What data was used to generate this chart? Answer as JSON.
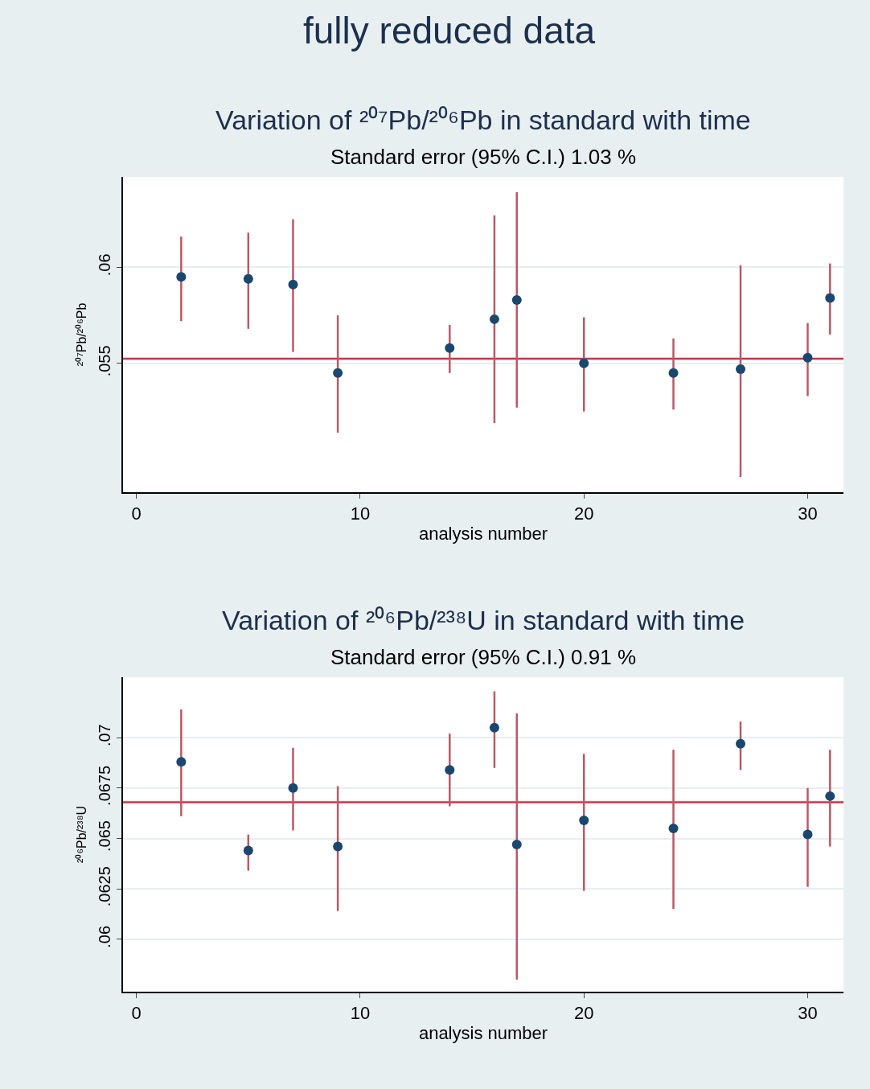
{
  "chart_data": [
    {
      "type": "scatter",
      "annotations": [
        "fully reduced data"
      ],
      "title": "Variation of ²⁰⁷Pb/²⁰⁶Pb in standard with time",
      "subtitle": "Standard error (95% C.I.) 1.03 %",
      "xlabel": "analysis number",
      "ylabel": "²⁰⁷Pb/²⁰⁶Pb",
      "x": [
        2,
        5,
        7,
        9,
        14,
        16,
        17,
        20,
        24,
        27,
        30,
        31
      ],
      "series": [
        {
          "color": "#1a476f",
          "values": [
            0.0595,
            0.0594,
            0.0591,
            0.0545,
            0.0558,
            0.0573,
            0.0583,
            0.055,
            0.0545,
            0.0547,
            0.0553,
            0.0584
          ],
          "errors": [
            [
              0.0572,
              0.0616
            ],
            [
              0.0568,
              0.0618
            ],
            [
              0.0556,
              0.0625
            ],
            [
              0.0514,
              0.0575
            ],
            [
              0.0545,
              0.057
            ],
            [
              0.0519,
              0.0627
            ],
            [
              0.0527,
              0.0639
            ],
            [
              0.0525,
              0.0574
            ],
            [
              0.0526,
              0.0563
            ],
            [
              0.0491,
              0.0601
            ],
            [
              0.0533,
              0.0571
            ],
            [
              0.0565,
              0.0602
            ]
          ]
        }
      ],
      "marker": "circle",
      "xlim": [
        -0.6,
        31.6
      ],
      "xticks": [
        0,
        10,
        20,
        30
      ],
      "ylim": [
        0.0483,
        0.0647
      ],
      "yticks": [
        {
          "value": 0.055,
          "label": ".055"
        },
        {
          "value": 0.06,
          "label": ".06"
        }
      ],
      "grid": "y",
      "ref_lines": [
        {
          "axis": "y",
          "value": 0.05525,
          "color": "#d0304a"
        }
      ]
    },
    {
      "type": "scatter",
      "title": "Variation of ²⁰⁶Pb/²³⁸U in standard with time",
      "subtitle": "Standard error (95% C.I.) 0.91 %",
      "xlabel": "analysis number",
      "ylabel": "²⁰⁶Pb/²³⁸U",
      "x": [
        2,
        5,
        7,
        9,
        14,
        16,
        17,
        20,
        24,
        27,
        30,
        31
      ],
      "series": [
        {
          "color": "#1a476f",
          "values": [
            0.0688,
            0.0644,
            0.0675,
            0.0646,
            0.0684,
            0.0705,
            0.0647,
            0.0659,
            0.0655,
            0.0697,
            0.0652,
            0.0671
          ],
          "errors": [
            [
              0.0661,
              0.0714
            ],
            [
              0.0634,
              0.0652
            ],
            [
              0.0654,
              0.0695
            ],
            [
              0.0614,
              0.0676
            ],
            [
              0.0666,
              0.0702
            ],
            [
              0.0685,
              0.0723
            ],
            [
              0.058,
              0.0712
            ],
            [
              0.0624,
              0.0692
            ],
            [
              0.0615,
              0.0694
            ],
            [
              0.0684,
              0.0708
            ],
            [
              0.0626,
              0.0675
            ],
            [
              0.0646,
              0.0694
            ]
          ]
        }
      ],
      "marker": "circle",
      "xlim": [
        -0.6,
        31.6
      ],
      "xticks": [
        0,
        10,
        20,
        30
      ],
      "ylim": [
        0.0574,
        0.073
      ],
      "yticks": [
        {
          "value": 0.06,
          "label": ".06"
        },
        {
          "value": 0.0625,
          "label": ".0625"
        },
        {
          "value": 0.065,
          "label": ".065"
        },
        {
          "value": 0.0675,
          "label": ".0675"
        },
        {
          "value": 0.07,
          "label": ".07"
        }
      ],
      "grid": "y",
      "ref_lines": [
        {
          "axis": "y",
          "value": 0.0668,
          "color": "#d0304a"
        }
      ]
    }
  ]
}
